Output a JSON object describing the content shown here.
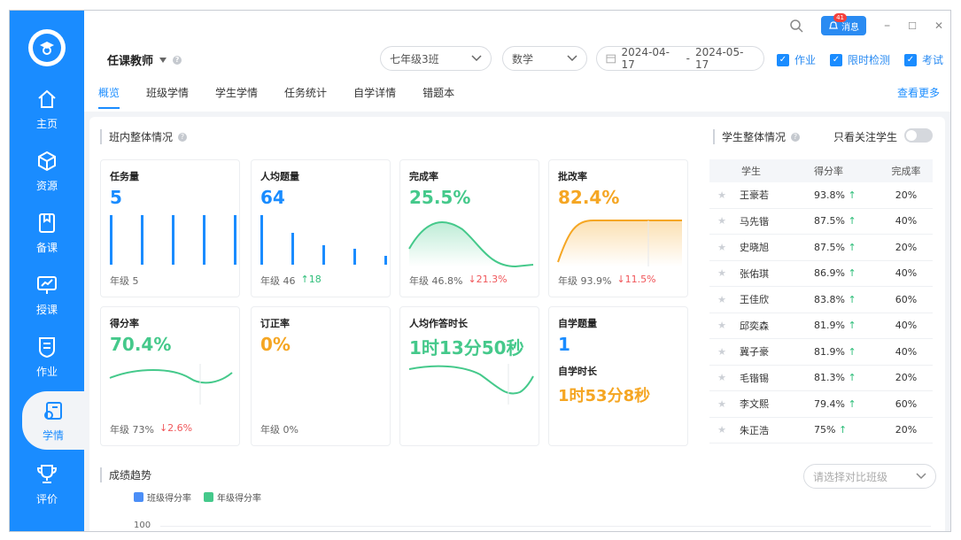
{
  "sidebar": {
    "items": [
      {
        "label": "主页",
        "icon": "home-icon"
      },
      {
        "label": "资源",
        "icon": "cube-icon"
      },
      {
        "label": "备课",
        "icon": "book-icon"
      },
      {
        "label": "授课",
        "icon": "presentation-icon"
      },
      {
        "label": "作业",
        "icon": "shield-doc-icon"
      },
      {
        "label": "学情",
        "icon": "learning-data-icon"
      },
      {
        "label": "评价",
        "icon": "trophy-icon"
      }
    ],
    "active_index": 5
  },
  "window": {
    "msg_label": "消息",
    "msg_count": "41",
    "min": "–",
    "max": "☐",
    "close": "✕"
  },
  "topbar": {
    "role": "任课教师",
    "class_select": "七年级3班",
    "subject_select": "数学",
    "date_start": "2024-04-17",
    "date_sep": "-",
    "date_end": "2024-05-17",
    "filters": [
      "作业",
      "限时检测",
      "考试"
    ]
  },
  "tabs": [
    "概览",
    "班级学情",
    "学生学情",
    "任务统计",
    "自学详情",
    "错题本"
  ],
  "more_label": "查看更多",
  "class_overview": {
    "title": "班内整体情况",
    "cards": [
      {
        "label": "任务量",
        "value": "5",
        "color": "#1a8cff",
        "foot": "年级 5",
        "delta": "",
        "dir": ""
      },
      {
        "label": "人均题量",
        "value": "64",
        "color": "#1a8cff",
        "foot": "年级 46",
        "delta": "18",
        "dir": "up"
      },
      {
        "label": "完成率",
        "value": "25.5%",
        "color": "#45c98b",
        "foot": "年级 46.8%",
        "delta": "21.3%",
        "dir": "down"
      },
      {
        "label": "批改率",
        "value": "82.4%",
        "color": "#f5a623",
        "foot": "年级 93.9%",
        "delta": "11.5%",
        "dir": "down"
      },
      {
        "label": "得分率",
        "value": "70.4%",
        "color": "#45c98b",
        "foot": "年级 73%",
        "delta": "2.6%",
        "dir": "down"
      },
      {
        "label": "订正率",
        "value": "0%",
        "color": "#f5a623",
        "foot": "年级 0%",
        "delta": "",
        "dir": ""
      },
      {
        "label": "人均作答时长",
        "value": "1时13分50秒",
        "color": "#45c98b",
        "foot": "",
        "delta": "",
        "dir": ""
      },
      {
        "label": "自学题量",
        "value": "1",
        "color": "#1a8cff",
        "foot": "",
        "delta": "",
        "dir": "",
        "sub_label": "自学时长",
        "sub_value": "1时53分8秒"
      }
    ]
  },
  "students": {
    "title": "学生整体情况",
    "focus_label": "只看关注学生",
    "headers": [
      "学生",
      "得分率",
      "完成率"
    ],
    "rows": [
      {
        "name": "王豪若",
        "score": "93.8%",
        "done": "20%"
      },
      {
        "name": "马先锴",
        "score": "87.5%",
        "done": "40%"
      },
      {
        "name": "史晓旭",
        "score": "87.5%",
        "done": "20%"
      },
      {
        "name": "张佑琪",
        "score": "86.9%",
        "done": "40%"
      },
      {
        "name": "王佳欣",
        "score": "83.8%",
        "done": "60%"
      },
      {
        "name": "邱奕森",
        "score": "81.9%",
        "done": "40%"
      },
      {
        "name": "冀子豪",
        "score": "81.9%",
        "done": "40%"
      },
      {
        "name": "毛锴锡",
        "score": "81.3%",
        "done": "20%"
      },
      {
        "name": "李文熙",
        "score": "79.4%",
        "done": "60%"
      },
      {
        "name": "朱正浩",
        "score": "75%",
        "done": "20%"
      }
    ]
  },
  "trend": {
    "title": "成绩趋势",
    "compare_placeholder": "请选择对比班级",
    "legend": [
      {
        "name": "班级得分率",
        "color": "#4b8ef7"
      },
      {
        "name": "年级得分率",
        "color": "#45c98b"
      }
    ],
    "ytick_top": "100"
  }
}
